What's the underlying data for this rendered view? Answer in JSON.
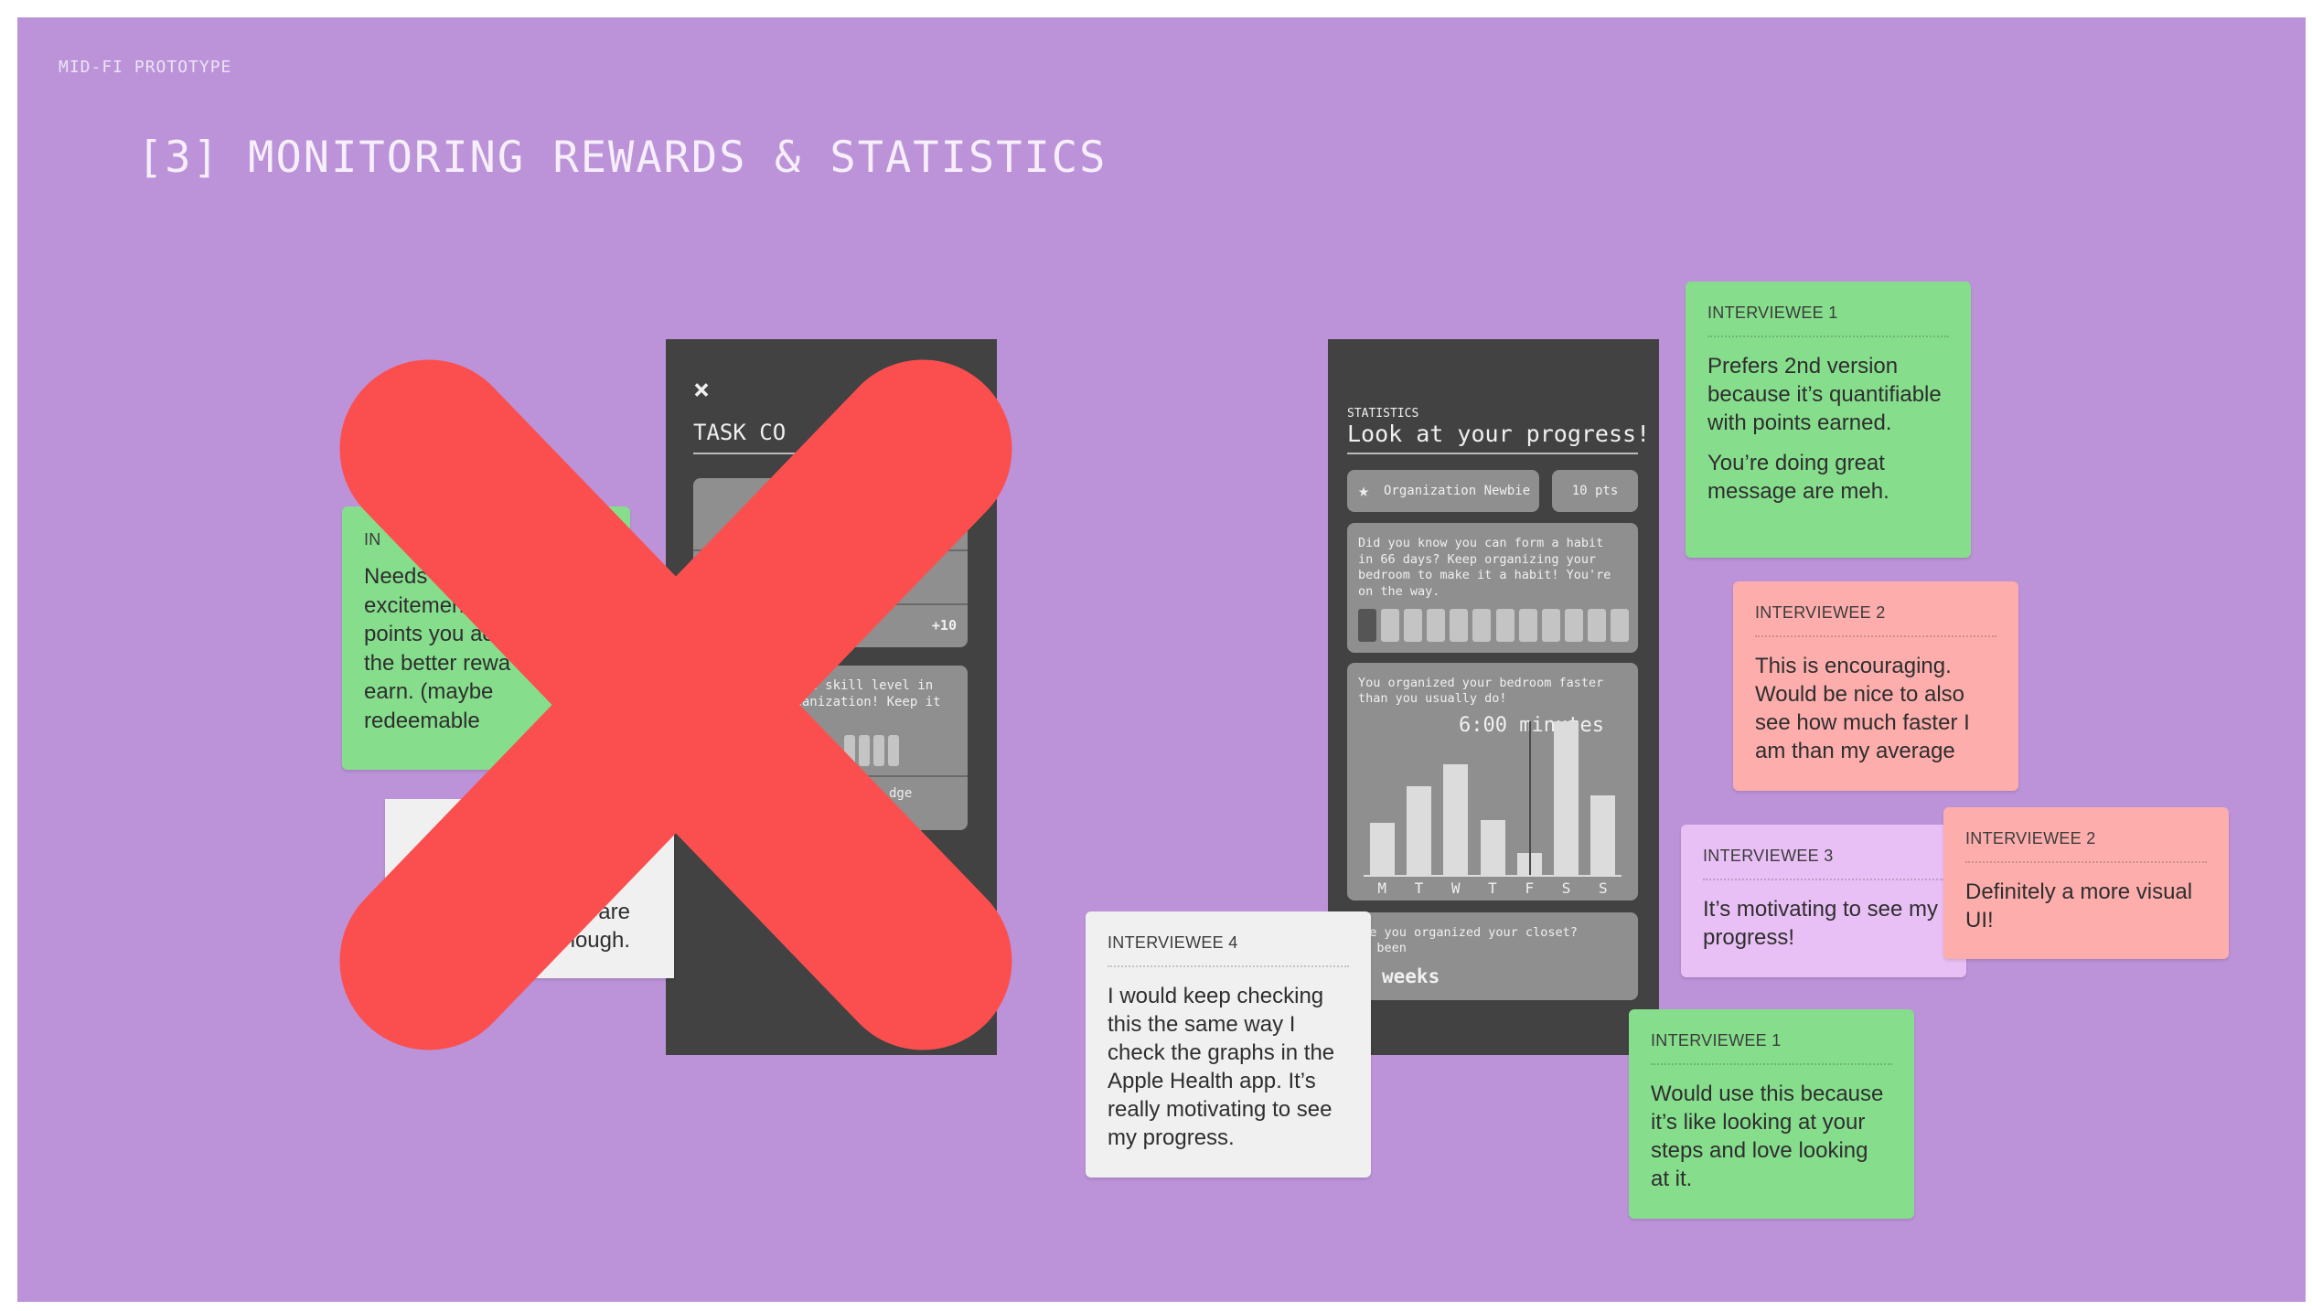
{
  "page": {
    "eyebrow": "MID-FI PROTOTYPE",
    "title": "[3] MONITORING REWARDS & STATISTICS"
  },
  "left_phone": {
    "close_glyph": "×",
    "title": "TASK CO",
    "points_badge": "+10",
    "skill_line1": "ed a skill level in",
    "skill_line2": "rganization! Keep it",
    "badge_label": "dge"
  },
  "left_stickies": {
    "green": {
      "who": "IN",
      "lines": [
        "Needs e",
        "excitemen",
        "points you ac",
        "the better rewa",
        "earn. (maybe",
        "redeemable"
      ]
    },
    "white": {
      "lines": [
        "it are",
        "t enough."
      ]
    }
  },
  "rejected_mark_color": "#fb4f4f",
  "right_phone": {
    "eyebrow": "STATISTICS",
    "title": "Look at your progress!",
    "badge": {
      "icon": "star-icon",
      "label": "Organization Newbie"
    },
    "points": "10 pts",
    "habit": {
      "text": [
        "Did you know you can form a habit",
        "in 66 days? Keep organizing your",
        "bedroom to make it a habit! You're",
        "on the way."
      ],
      "segments_total": 12,
      "segments_done": 1
    },
    "speed": {
      "text": [
        "You organized your bedroom faster",
        "than you usually do!"
      ],
      "value": "6:00 minutes"
    },
    "closet": {
      "text": [
        "ave you organized your closet?",
        "'s been"
      ],
      "value": "weeks"
    }
  },
  "chart_data": {
    "type": "bar",
    "categories": [
      "M",
      "T",
      "W",
      "T",
      "F",
      "S",
      "S"
    ],
    "values": [
      3.4,
      5.8,
      7.2,
      3.6,
      1.4,
      10,
      5.2
    ],
    "highlight_category_index": 4
  },
  "feedback": [
    {
      "who": "INTERVIEWEE 1",
      "color": "#86de8d",
      "paragraphs": [
        "Prefers 2nd version because it’s quantifiable with points earned.",
        "You’re doing great message are meh."
      ]
    },
    {
      "who": "INTERVIEWEE 2",
      "color": "#fdaeac",
      "paragraphs": [
        "This is encouraging. Would be nice to also see how much faster I am than my average"
      ]
    },
    {
      "who": "INTERVIEWEE 3",
      "color": "#e9c0f5",
      "paragraphs": [
        "It’s motivating to see my progress!"
      ]
    },
    {
      "who": "INTERVIEWEE 2",
      "color": "#fdaeac",
      "paragraphs": [
        "Definitely a more visual UI!"
      ]
    },
    {
      "who": "INTERVIEWEE 4",
      "color": "#f0f0f0",
      "paragraphs": [
        "I would keep checking this the same way I check the graphs in the Apple Health app. It’s really motivating to see my progress."
      ]
    },
    {
      "who": "INTERVIEWEE 1",
      "color": "#86de8d",
      "paragraphs": [
        "Would use this because it’s like looking at your steps and love looking at it."
      ]
    }
  ]
}
